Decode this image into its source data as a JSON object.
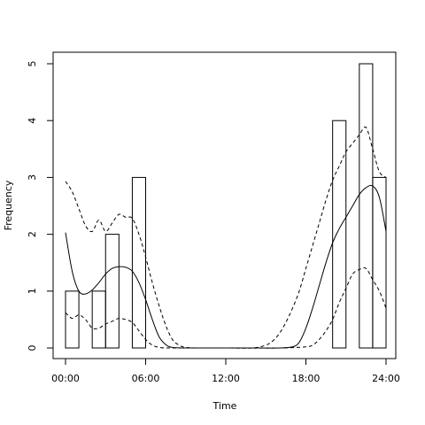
{
  "chart_data": {
    "type": "bar",
    "title": "",
    "xlabel": "Time",
    "ylabel": "Frequency",
    "xlim": [
      0,
      24
    ],
    "ylim": [
      0,
      5
    ],
    "x_ticks": [
      {
        "value": 0,
        "label": "00:00"
      },
      {
        "value": 6,
        "label": "06:00"
      },
      {
        "value": 12,
        "label": "12:00"
      },
      {
        "value": 18,
        "label": "18:00"
      },
      {
        "value": 24,
        "label": "24:00"
      }
    ],
    "y_ticks": [
      0,
      1,
      2,
      3,
      4,
      5
    ],
    "grid": false,
    "legend": "none",
    "bars": [
      {
        "x0": 0,
        "x1": 1,
        "value": 1
      },
      {
        "x0": 1,
        "x1": 2,
        "value": 0
      },
      {
        "x0": 2,
        "x1": 3,
        "value": 1
      },
      {
        "x0": 3,
        "x1": 4,
        "value": 2
      },
      {
        "x0": 4,
        "x1": 5,
        "value": 0
      },
      {
        "x0": 5,
        "x1": 6,
        "value": 3
      },
      {
        "x0": 20,
        "x1": 21,
        "value": 4
      },
      {
        "x0": 21,
        "x1": 22,
        "value": 0
      },
      {
        "x0": 22,
        "x1": 23,
        "value": 5
      },
      {
        "x0": 23,
        "x1": 24,
        "value": 3
      }
    ],
    "series": [
      {
        "style": "solid",
        "x": [
          0,
          0.5,
          1,
          1.5,
          2,
          2.5,
          3,
          3.5,
          4,
          4.5,
          5,
          5.5,
          6,
          6.5,
          7,
          7.5,
          8,
          9,
          10,
          12,
          14,
          16,
          17,
          17.5,
          18,
          18.5,
          19,
          19.5,
          20,
          20.5,
          21,
          21.5,
          22,
          22.5,
          23,
          23.5,
          24
        ],
        "y": [
          2.03,
          1.35,
          1.0,
          0.95,
          1.02,
          1.15,
          1.3,
          1.4,
          1.43,
          1.42,
          1.35,
          1.15,
          0.85,
          0.5,
          0.2,
          0.06,
          0.01,
          0,
          0,
          0,
          0,
          0,
          0.02,
          0.1,
          0.35,
          0.7,
          1.1,
          1.5,
          1.85,
          2.1,
          2.3,
          2.5,
          2.7,
          2.82,
          2.85,
          2.65,
          2.05
        ]
      },
      {
        "style": "dashed",
        "x": [
          0,
          0.5,
          1,
          1.5,
          2,
          2.5,
          3,
          3.5,
          4,
          4.5,
          5,
          5.5,
          6,
          6.5,
          7,
          7.5,
          8,
          8.5,
          9,
          10,
          12,
          14,
          15,
          15.5,
          16,
          16.5,
          17,
          17.5,
          18,
          18.5,
          19,
          19.5,
          20,
          20.5,
          21,
          21.5,
          22,
          22.5,
          23,
          23.5,
          24
        ],
        "y": [
          2.93,
          2.75,
          2.45,
          2.15,
          2.05,
          2.25,
          2.05,
          2.2,
          2.35,
          2.3,
          2.28,
          2.0,
          1.6,
          1.15,
          0.75,
          0.4,
          0.15,
          0.05,
          0.01,
          0,
          0,
          0,
          0.05,
          0.12,
          0.25,
          0.45,
          0.7,
          1.0,
          1.4,
          1.8,
          2.2,
          2.6,
          2.95,
          3.2,
          3.45,
          3.6,
          3.75,
          3.88,
          3.5,
          3.1,
          3.0
        ]
      },
      {
        "style": "dashed",
        "x": [
          0,
          0.5,
          1,
          1.5,
          2,
          2.5,
          3,
          3.5,
          4,
          4.5,
          5,
          5.5,
          6,
          6.5,
          7,
          7.5,
          8,
          9,
          12,
          16,
          18,
          18.5,
          19,
          19.5,
          20,
          20.5,
          21,
          21.5,
          22,
          22.5,
          23,
          23.5,
          24
        ],
        "y": [
          0.62,
          0.52,
          0.58,
          0.5,
          0.35,
          0.35,
          0.42,
          0.47,
          0.52,
          0.5,
          0.45,
          0.3,
          0.15,
          0.05,
          0.01,
          0,
          0,
          0,
          0,
          0,
          0.02,
          0.05,
          0.15,
          0.3,
          0.5,
          0.8,
          1.05,
          1.3,
          1.38,
          1.4,
          1.2,
          1.0,
          0.7
        ]
      }
    ]
  }
}
